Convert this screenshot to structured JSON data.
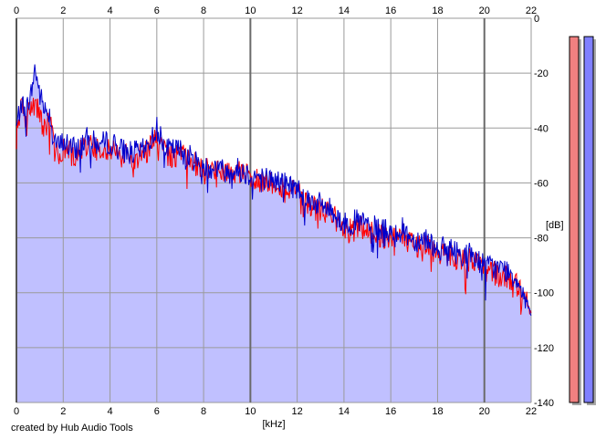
{
  "chart_data": {
    "type": "area",
    "xlabel": "[kHz]",
    "ylabel": "[dB]",
    "xlim": [
      0,
      22
    ],
    "ylim": [
      -140,
      0
    ],
    "x_ticks": [
      0,
      2,
      4,
      6,
      8,
      10,
      12,
      14,
      16,
      18,
      20,
      22
    ],
    "y_ticks": [
      0,
      -20,
      -40,
      -60,
      -80,
      -100,
      -120,
      -140
    ],
    "grid": true,
    "fill_color": "#c0c0ff",
    "series": [
      {
        "color": "#ff0000",
        "x": [
          0.0,
          0.2,
          0.4,
          0.6,
          0.8,
          1.0,
          1.2,
          1.4,
          1.6,
          1.8,
          2.0,
          2.5,
          3.0,
          3.5,
          4.0,
          4.5,
          5.0,
          5.5,
          6.0,
          6.5,
          7.0,
          7.5,
          8.0,
          8.5,
          9.0,
          9.5,
          10.0,
          10.5,
          11.0,
          11.5,
          12.0,
          12.5,
          13.0,
          13.5,
          14.0,
          14.5,
          15.0,
          15.5,
          16.0,
          16.5,
          17.0,
          17.5,
          18.0,
          18.5,
          19.0,
          19.5,
          20.0,
          20.5,
          21.0,
          21.5,
          22.0
        ],
        "values": [
          -42,
          -32,
          -36,
          -31,
          -30,
          -36,
          -40,
          -36,
          -45,
          -49,
          -48,
          -50,
          -46,
          -48,
          -47,
          -50,
          -51,
          -49,
          -44,
          -50,
          -50,
          -52,
          -55,
          -55,
          -57,
          -56,
          -58,
          -59,
          -60,
          -62,
          -64,
          -68,
          -70,
          -71,
          -78,
          -76,
          -77,
          -79,
          -80,
          -79,
          -83,
          -82,
          -86,
          -86,
          -88,
          -88,
          -92,
          -93,
          -95,
          -98,
          -105
        ]
      },
      {
        "color": "#0000cc",
        "x": [
          0.0,
          0.2,
          0.4,
          0.6,
          0.8,
          1.0,
          1.2,
          1.4,
          1.6,
          1.8,
          2.0,
          2.5,
          3.0,
          3.5,
          4.0,
          4.5,
          5.0,
          5.5,
          6.0,
          6.5,
          7.0,
          7.5,
          8.0,
          8.5,
          9.0,
          9.5,
          10.0,
          10.5,
          11.0,
          11.5,
          12.0,
          12.5,
          13.0,
          13.5,
          14.0,
          14.5,
          15.0,
          15.5,
          16.0,
          16.5,
          17.0,
          17.5,
          18.0,
          18.5,
          19.0,
          19.5,
          20.0,
          20.5,
          21.0,
          21.5,
          22.0
        ],
        "values": [
          -40,
          -30,
          -33,
          -29,
          -18,
          -28,
          -33,
          -34,
          -43,
          -47,
          -45,
          -48,
          -44,
          -46,
          -45,
          -48,
          -49,
          -48,
          -40,
          -48,
          -48,
          -51,
          -54,
          -54,
          -56,
          -55,
          -57,
          -58,
          -59,
          -60,
          -62,
          -66,
          -68,
          -70,
          -75,
          -74,
          -75,
          -77,
          -78,
          -77,
          -81,
          -80,
          -84,
          -84,
          -86,
          -86,
          -90,
          -91,
          -92,
          -96,
          -108
        ]
      }
    ]
  },
  "level_meters": {
    "left": {
      "color": "#f08080",
      "level": 0.985
    },
    "right": {
      "color": "#8080ff",
      "level": 0.985
    }
  },
  "footer": {
    "credit": "created by Hub Audio Tools"
  }
}
